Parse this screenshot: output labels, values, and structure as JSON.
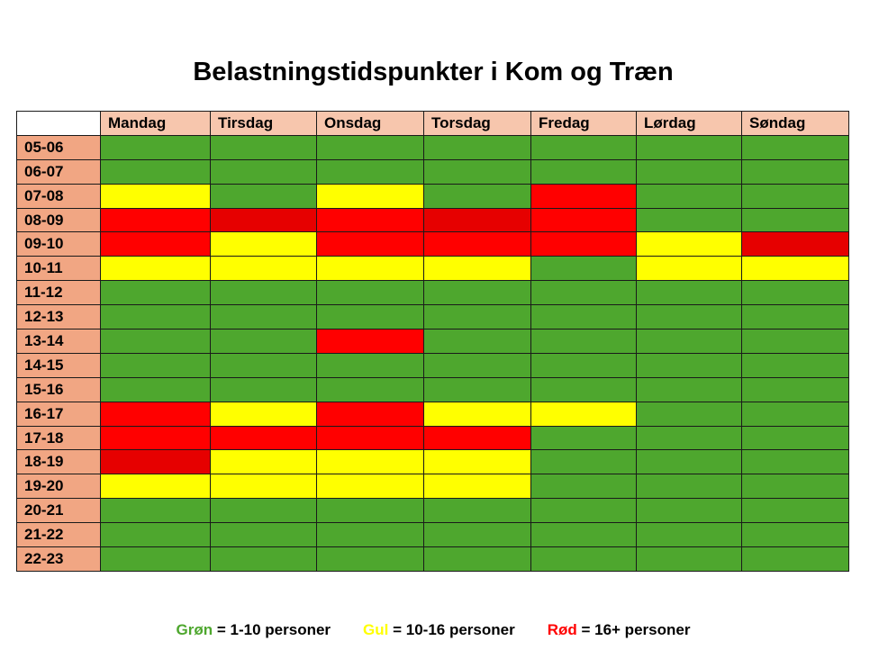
{
  "title": "Belastningstidspunkter i Kom og Træn",
  "days": [
    "Mandag",
    "Tirsdag",
    "Onsdag",
    "Torsdag",
    "Fredag",
    "Lørdag",
    "Søndag"
  ],
  "colors": {
    "G": "#4ea72e",
    "Y": "#ffff00",
    "R": "#ff0000",
    "D": "#e60000",
    "header": "#f7c6ad",
    "row_label": "#f1a683"
  },
  "rows": [
    {
      "time": "05-06",
      "cells": [
        "G",
        "G",
        "G",
        "G",
        "G",
        "G",
        "G"
      ]
    },
    {
      "time": "06-07",
      "cells": [
        "G",
        "G",
        "G",
        "G",
        "G",
        "G",
        "G"
      ]
    },
    {
      "time": "07-08",
      "cells": [
        "Y",
        "G",
        "Y",
        "G",
        "R",
        "G",
        "G"
      ]
    },
    {
      "time": "08-09",
      "cells": [
        "R",
        "D",
        "R",
        "D",
        "R",
        "G",
        "G"
      ]
    },
    {
      "time": "09-10",
      "cells": [
        "R",
        "Y",
        "R",
        "R",
        "R",
        "Y",
        "D"
      ]
    },
    {
      "time": "10-11",
      "cells": [
        "Y",
        "Y",
        "Y",
        "Y",
        "G",
        "Y",
        "Y"
      ]
    },
    {
      "time": "11-12",
      "cells": [
        "G",
        "G",
        "G",
        "G",
        "G",
        "G",
        "G"
      ]
    },
    {
      "time": "12-13",
      "cells": [
        "G",
        "G",
        "G",
        "G",
        "G",
        "G",
        "G"
      ]
    },
    {
      "time": "13-14",
      "cells": [
        "G",
        "G",
        "R",
        "G",
        "G",
        "G",
        "G"
      ]
    },
    {
      "time": "14-15",
      "cells": [
        "G",
        "G",
        "G",
        "G",
        "G",
        "G",
        "G"
      ]
    },
    {
      "time": "15-16",
      "cells": [
        "G",
        "G",
        "G",
        "G",
        "G",
        "G",
        "G"
      ]
    },
    {
      "time": "16-17",
      "cells": [
        "R",
        "Y",
        "R",
        "Y",
        "Y",
        "G",
        "G"
      ]
    },
    {
      "time": "17-18",
      "cells": [
        "R",
        "R",
        "R",
        "R",
        "G",
        "G",
        "G"
      ]
    },
    {
      "time": "18-19",
      "cells": [
        "D",
        "Y",
        "Y",
        "Y",
        "G",
        "G",
        "G"
      ]
    },
    {
      "time": "19-20",
      "cells": [
        "Y",
        "Y",
        "Y",
        "Y",
        "G",
        "G",
        "G"
      ]
    },
    {
      "time": "20-21",
      "cells": [
        "G",
        "G",
        "G",
        "G",
        "G",
        "G",
        "G"
      ]
    },
    {
      "time": "21-22",
      "cells": [
        "G",
        "G",
        "G",
        "G",
        "G",
        "G",
        "G"
      ]
    },
    {
      "time": "22-23",
      "cells": [
        "G",
        "G",
        "G",
        "G",
        "G",
        "G",
        "G"
      ]
    }
  ],
  "legend": {
    "green_word": "Grøn",
    "green_text": " = 1-10 personer",
    "yellow_word": "Gul",
    "yellow_text": " = 10-16 personer",
    "red_word": "Rød",
    "red_text": " = 16+ personer"
  }
}
